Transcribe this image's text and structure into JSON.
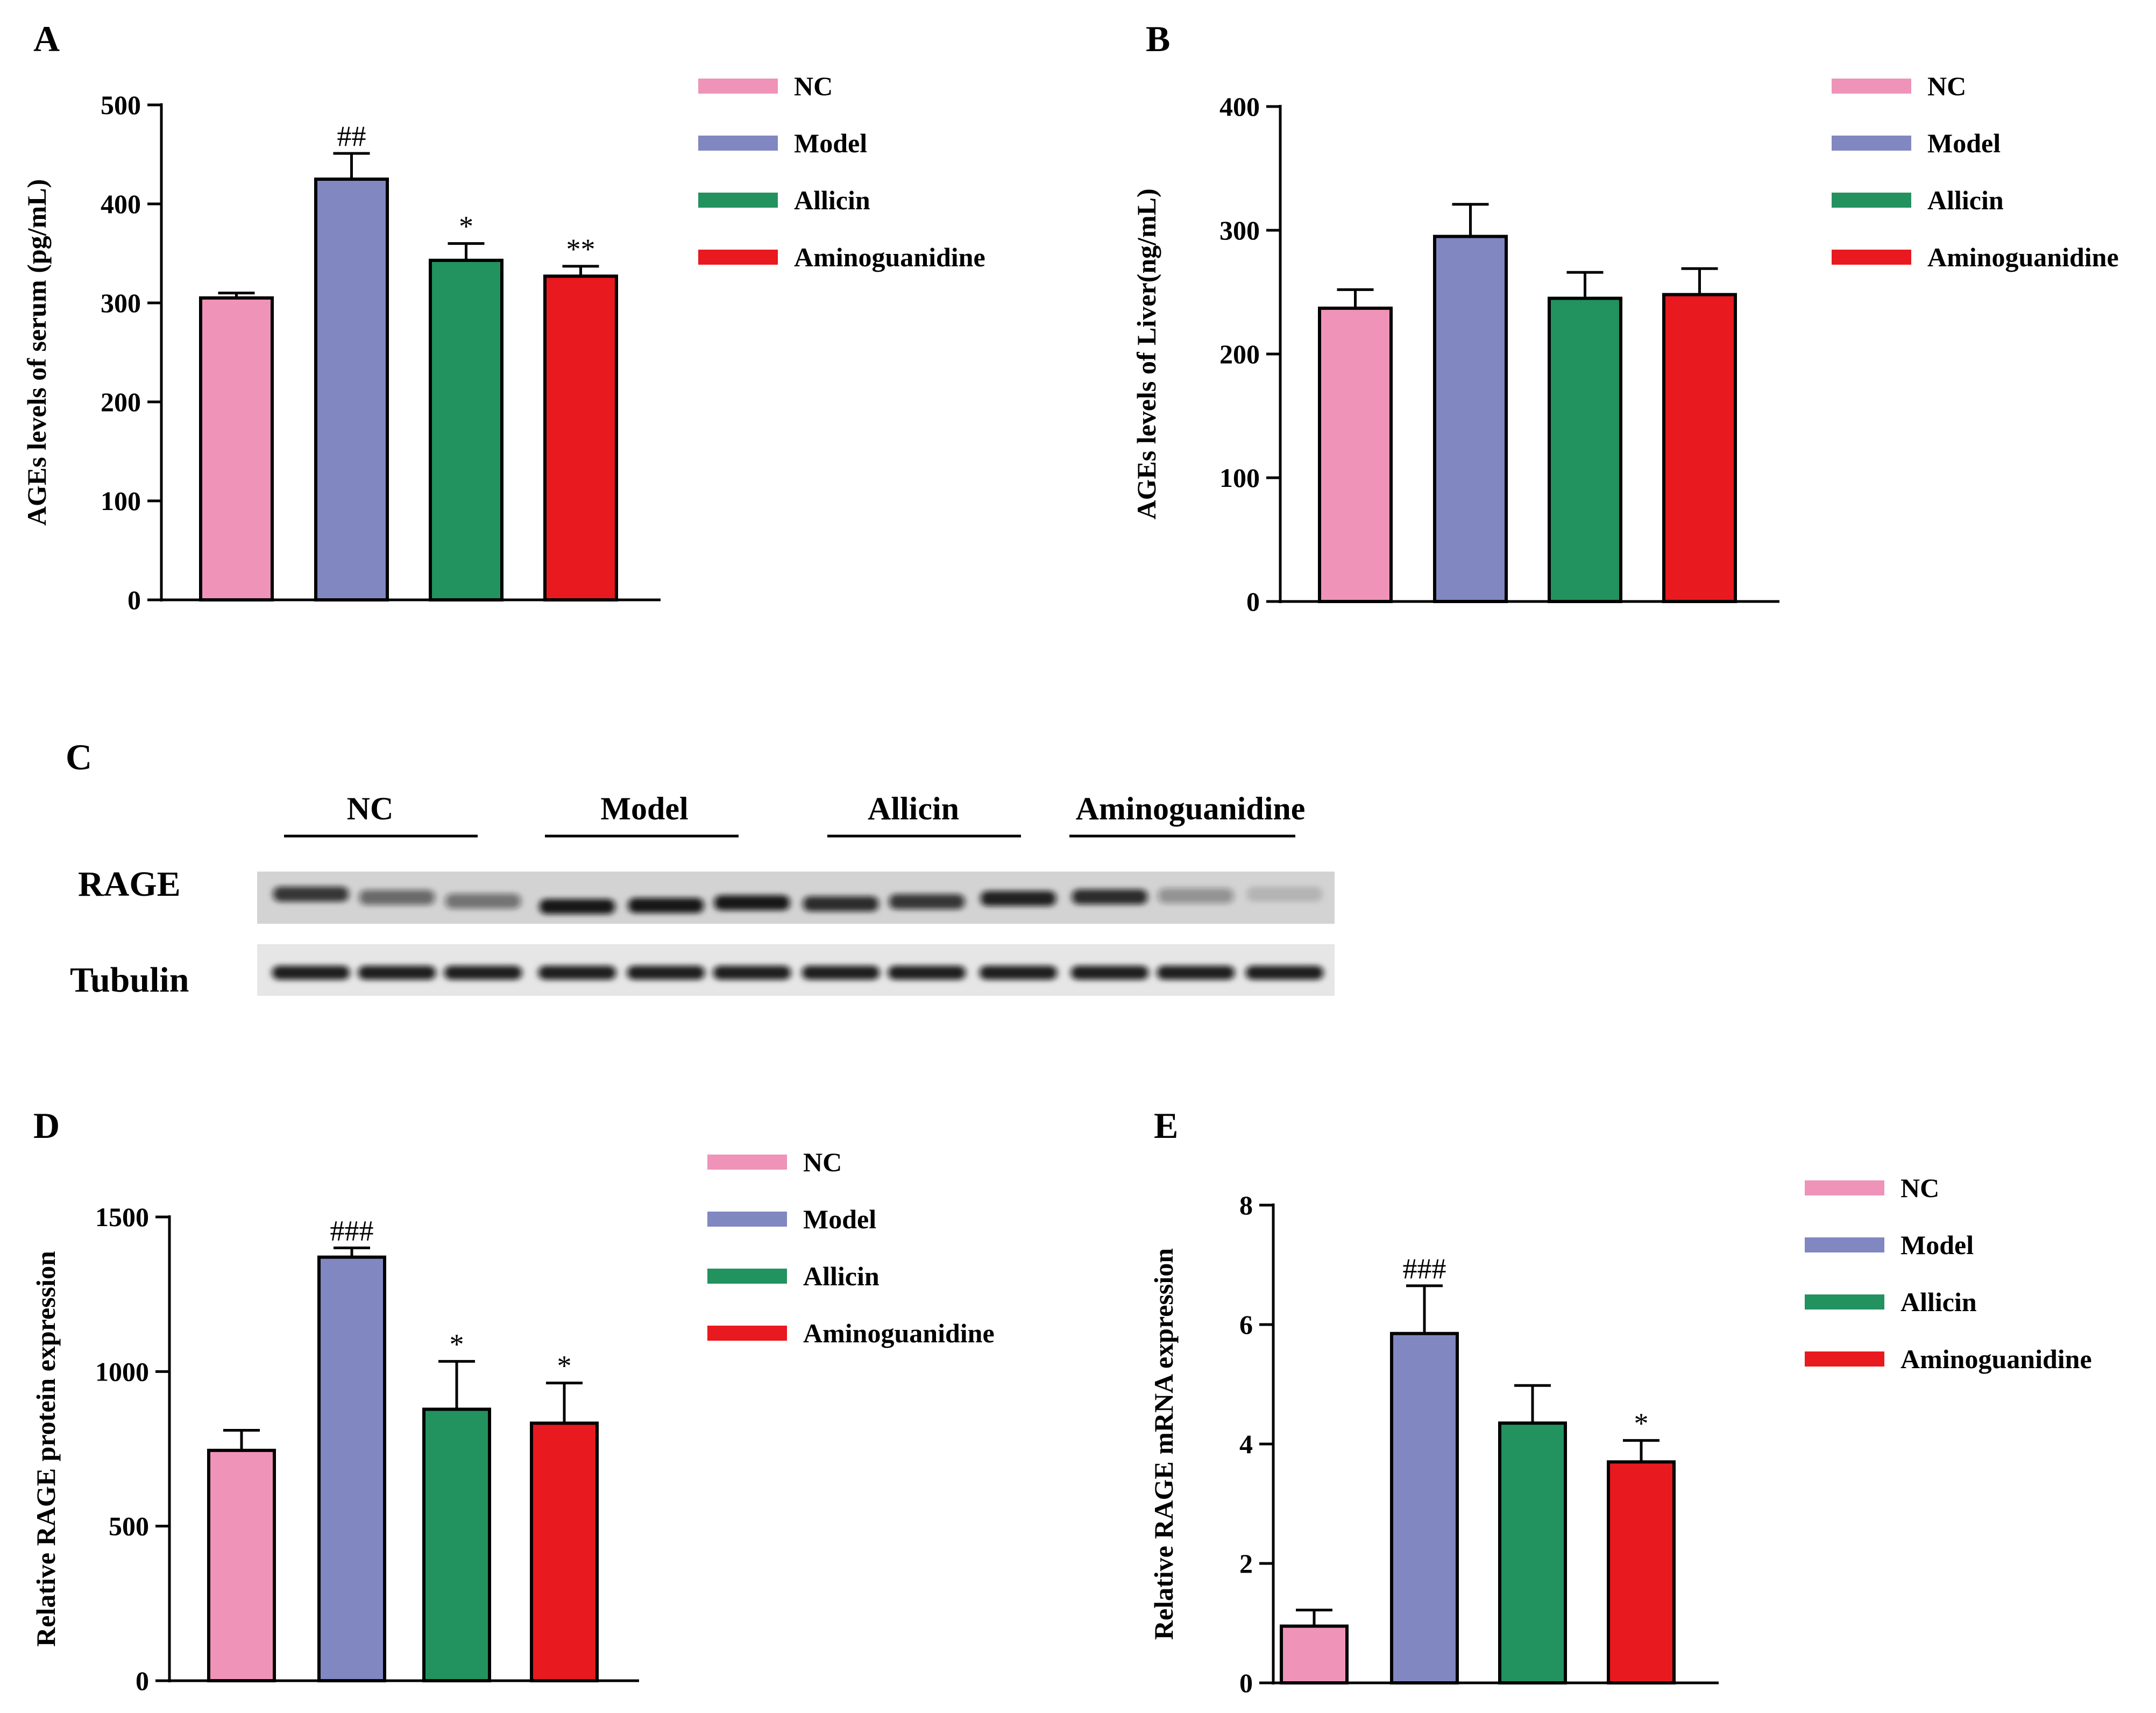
{
  "legend": [
    "NC",
    "Model",
    "Allicin",
    "Aminoguanidine"
  ],
  "colors": {
    "NC": "#ef93b9",
    "Model": "#8087c1",
    "Allicin": "#22925f",
    "Aminoguanidine": "#e8191f"
  },
  "blot": {
    "label": "C",
    "groups": [
      "NC",
      "Model",
      "Allicin",
      "Aminoguanidine"
    ],
    "rows": [
      "RAGE",
      "Tubulin"
    ]
  },
  "chart_data": [
    {
      "label": "A",
      "type": "bar",
      "categories": [
        "NC",
        "Model",
        "Allicin",
        "Aminoguanidine"
      ],
      "values": [
        305,
        425,
        343,
        327
      ],
      "errors": [
        5,
        26,
        17,
        10
      ],
      "annotations": [
        "",
        "##",
        "*",
        "**"
      ],
      "ylabel": "AGEs levels of serum (pg/mL)",
      "ylim": [
        0,
        500
      ],
      "yticks": [
        0,
        100,
        200,
        300,
        400,
        500
      ]
    },
    {
      "label": "B",
      "type": "bar",
      "categories": [
        "NC",
        "Model",
        "Allicin",
        "Aminoguanidine"
      ],
      "values": [
        237,
        295,
        245,
        248
      ],
      "errors": [
        15,
        26,
        21,
        21
      ],
      "annotations": [
        "",
        "",
        "",
        ""
      ],
      "ylabel": "AGEs levels of Liver(ng/mL)",
      "ylim": [
        0,
        400
      ],
      "yticks": [
        0,
        100,
        200,
        300,
        400
      ]
    },
    {
      "label": "D",
      "type": "bar",
      "categories": [
        "NC",
        "Model",
        "Allicin",
        "Aminoguanidine"
      ],
      "values": [
        745,
        1370,
        878,
        833
      ],
      "errors": [
        65,
        30,
        155,
        130
      ],
      "annotations": [
        "",
        "###",
        "*",
        "*"
      ],
      "ylabel": "Relative RAGE protein expression",
      "ylim": [
        0,
        1500
      ],
      "yticks": [
        0,
        500,
        1000,
        1500
      ]
    },
    {
      "label": "E",
      "type": "bar",
      "categories": [
        "NC",
        "Model",
        "Allicin",
        "Aminoguanidine"
      ],
      "values": [
        0.95,
        5.85,
        4.35,
        3.7
      ],
      "errors": [
        0.27,
        0.8,
        0.63,
        0.36
      ],
      "annotations": [
        "",
        "###",
        "",
        "*"
      ],
      "ylabel": "Relative RAGE mRNA expression",
      "ylim": [
        0,
        8
      ],
      "yticks": [
        0,
        2,
        4,
        6,
        8
      ]
    }
  ]
}
